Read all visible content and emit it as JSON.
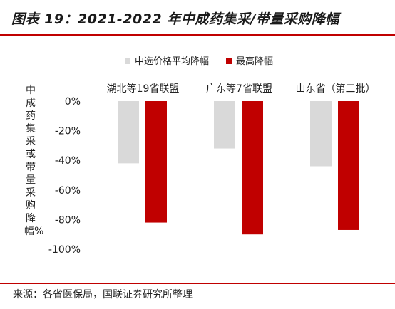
{
  "title": "图表 19：2021-2022 年中成药集采/带量采购降幅",
  "source": "来源：各省医保局，国联证券研究所整理",
  "chart_data": {
    "type": "bar",
    "ylabel": "中成药集采或带量采购降幅%",
    "categories": [
      "湖北等19省联盟",
      "广东等7省联盟",
      "山东省（第三批）"
    ],
    "series": [
      {
        "name": "中选价格平均降幅",
        "color": "#d9d9d9",
        "values": [
          -42,
          -32,
          -44
        ]
      },
      {
        "name": "最高降幅",
        "color": "#c00000",
        "values": [
          -82,
          -90,
          -87
        ]
      }
    ],
    "ylim": [
      -100,
      0
    ],
    "yticks": [
      0,
      -20,
      -40,
      -60,
      -80,
      -100
    ],
    "ytick_labels": [
      "0%",
      "-20%",
      "-40%",
      "-60%",
      "-80%",
      "-100%"
    ],
    "legend_position": "top",
    "grid": false
  }
}
